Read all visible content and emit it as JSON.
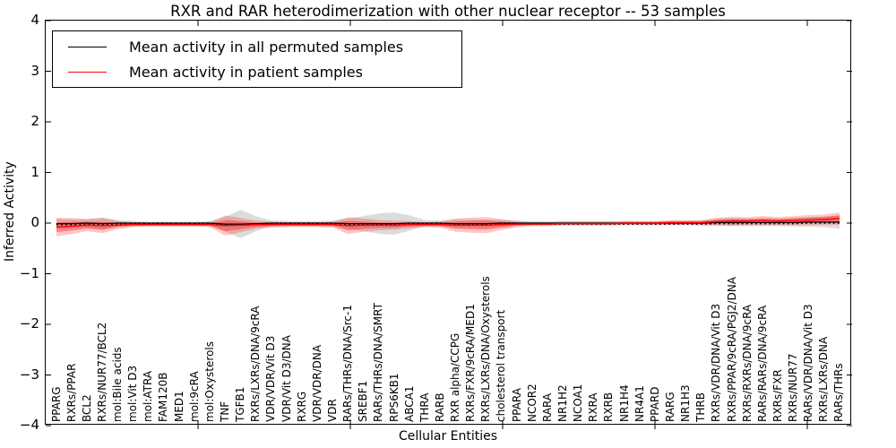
{
  "figure": {
    "title": "RXR and RAR heterodimerization with other nuclear receptor -- 53 samples",
    "xlabel": "Cellular Entities",
    "ylabel": "Inferred Activity",
    "legend": {
      "items": [
        {
          "label": "Mean activity in all permuted samples",
          "color": "#000000"
        },
        {
          "label": "Mean activity in patient samples",
          "color": "#ff0000"
        }
      ]
    }
  },
  "chart_data": {
    "type": "line",
    "title": "RXR and RAR heterodimerization with other nuclear receptor -- 53 samples",
    "xlabel": "Cellular Entities",
    "ylabel": "Inferred Activity",
    "ylim": [
      -4,
      4
    ],
    "yticks": [
      4,
      3,
      2,
      1,
      0,
      -1,
      -2,
      -3,
      -4
    ],
    "ytick_labels": [
      "4",
      "3",
      "2",
      "1",
      "0",
      "−1",
      "−2",
      "−3",
      "−4"
    ],
    "grid": false,
    "legend_position": "upper left",
    "categories": [
      "PPARG",
      "RXRs/PPAR",
      "BCL2",
      "RXRs/NUR77/BCL2",
      "mol:Bile acids",
      "mol:Vit D3",
      "mol:ATRA",
      "FAM120B",
      "MED1",
      "mol:9cRA",
      "mol:Oxysterols",
      "TNF",
      "TGFB1",
      "RXRs/LXRs/DNA/9cRA",
      "VDR/VDR/Vit D3",
      "VDR/Vit D3/DNA",
      "RXRG",
      "VDR/VDR/DNA",
      "VDR",
      "RARs/THRs/DNA/Src-1",
      "SREBF1",
      "RARs/THRs/DNA/SMRT",
      "RPS6KB1",
      "ABCA1",
      "THRA",
      "RARB",
      "RXR alpha/CCPG",
      "RXRs/FXR/9cRA/MED1",
      "RXRs/LXRs/DNA/Oxysterols",
      "cholesterol transport",
      "PPARA",
      "NCOR2",
      "RARA",
      "NR1H2",
      "NCOA1",
      "RXRA",
      "RXRB",
      "NR1H4",
      "NR4A1",
      "PPARD",
      "RARG",
      "NR1H3",
      "THRB",
      "RXRs/VDR/DNA/Vit D3",
      "RXRs/PPAR/9cRA/PGJ2/DNA",
      "RXRs/RXRs/DNA/9cRA",
      "RARs/RARs/DNA/9cRA",
      "RXRs/FXR",
      "RXRs/NUR77",
      "RARs/VDR/DNA/Vit D3",
      "RXRs/LXRs/DNA",
      "RARs/THRs"
    ],
    "series": [
      {
        "name": "Mean activity in all permuted samples",
        "color": "#000000",
        "line_style": "solid with dotted companion",
        "values": [
          -0.01,
          -0.01,
          0,
          -0.01,
          0,
          0,
          0,
          0,
          0,
          0,
          0,
          -0.02,
          -0.02,
          -0.01,
          0,
          0,
          0,
          0,
          0,
          -0.01,
          -0.01,
          -0.01,
          -0.01,
          0,
          0,
          0,
          -0.01,
          -0.01,
          -0.01,
          0,
          0,
          0,
          0,
          0,
          0,
          0,
          0,
          0,
          0,
          0,
          0,
          0,
          0,
          0.01,
          0.01,
          0.01,
          0.01,
          0.01,
          0.01,
          0.02,
          0.02,
          0.02
        ],
        "band_halfwidth": [
          0.1,
          0.08,
          0.08,
          0.12,
          0.06,
          0.04,
          0.03,
          0.03,
          0.03,
          0.03,
          0.04,
          0.15,
          0.28,
          0.15,
          0.05,
          0.04,
          0.04,
          0.04,
          0.05,
          0.1,
          0.15,
          0.2,
          0.22,
          0.15,
          0.06,
          0.05,
          0.08,
          0.08,
          0.08,
          0.06,
          0.05,
          0.04,
          0.04,
          0.04,
          0.04,
          0.04,
          0.04,
          0.04,
          0.04,
          0.04,
          0.04,
          0.04,
          0.05,
          0.06,
          0.07,
          0.07,
          0.07,
          0.07,
          0.08,
          0.09,
          0.1,
          0.13
        ],
        "band_color": "rgba(130,130,130,0.28)"
      },
      {
        "name": "Mean activity in patient samples",
        "color": "#ff0000",
        "line_style": "solid",
        "values": [
          -0.08,
          -0.06,
          -0.04,
          -0.05,
          -0.04,
          -0.03,
          -0.03,
          -0.03,
          -0.03,
          -0.03,
          -0.03,
          -0.05,
          -0.04,
          -0.03,
          -0.03,
          -0.03,
          -0.03,
          -0.03,
          -0.03,
          -0.05,
          -0.04,
          -0.04,
          -0.04,
          -0.03,
          -0.03,
          -0.03,
          -0.04,
          -0.04,
          -0.04,
          -0.03,
          -0.02,
          -0.02,
          -0.02,
          -0.01,
          -0.01,
          -0.01,
          -0.01,
          0,
          0,
          0,
          0.01,
          0.01,
          0.01,
          0.03,
          0.04,
          0.04,
          0.05,
          0.04,
          0.05,
          0.06,
          0.07,
          0.09
        ],
        "band_halfwidth": [
          0.18,
          0.16,
          0.12,
          0.15,
          0.08,
          0.05,
          0.04,
          0.04,
          0.04,
          0.04,
          0.05,
          0.2,
          0.14,
          0.08,
          0.06,
          0.05,
          0.05,
          0.05,
          0.06,
          0.17,
          0.13,
          0.1,
          0.09,
          0.07,
          0.05,
          0.06,
          0.13,
          0.15,
          0.16,
          0.11,
          0.06,
          0.04,
          0.04,
          0.04,
          0.04,
          0.04,
          0.04,
          0.04,
          0.04,
          0.04,
          0.05,
          0.05,
          0.05,
          0.08,
          0.09,
          0.08,
          0.09,
          0.08,
          0.09,
          0.1,
          0.1,
          0.12
        ],
        "band_color": "rgba(255,0,0,0.22)",
        "band_inner_color": "rgba(255,0,0,0.33)"
      }
    ]
  }
}
